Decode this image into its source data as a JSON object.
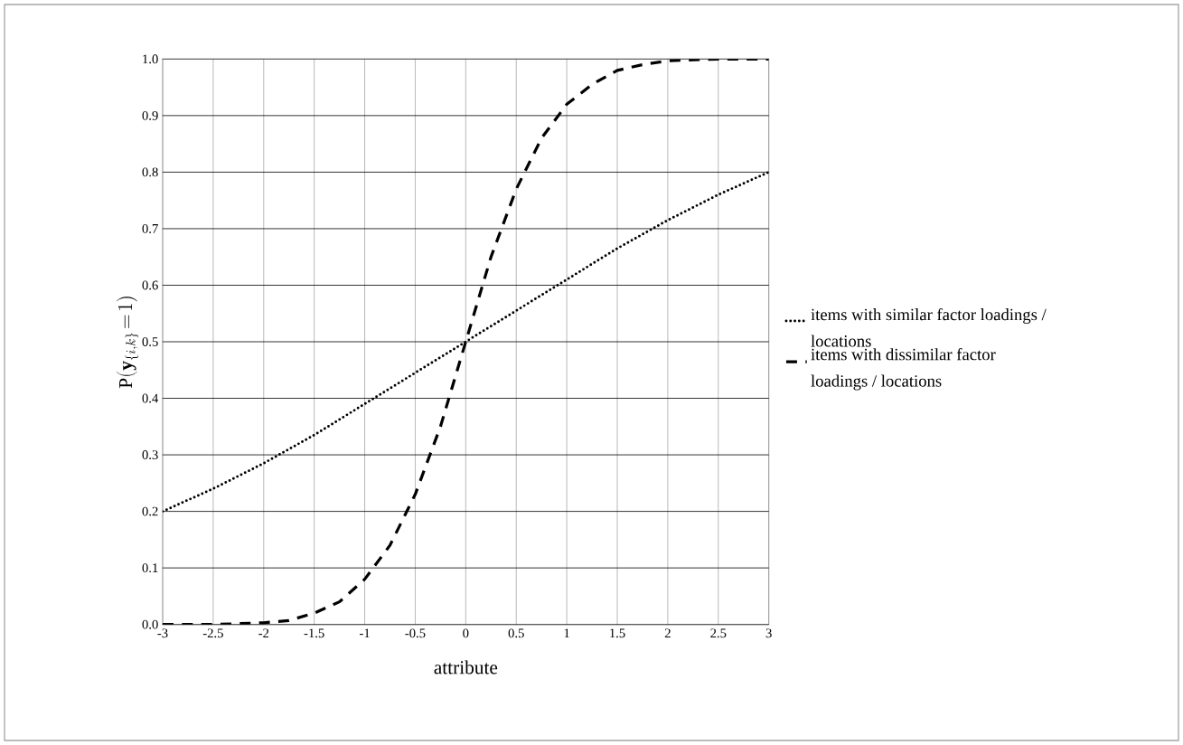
{
  "chart_data": {
    "type": "line",
    "xlabel": "attribute",
    "ylabel": "\\mathrm{P}(\\mathbf{y}_{\\{i,k\\}}\\!=\\!1)",
    "xlim": [
      -3,
      3
    ],
    "ylim": [
      0,
      1
    ],
    "xticks": [
      -3,
      -2.5,
      -2,
      -1.5,
      -1,
      -0.5,
      0,
      0.5,
      1,
      1.5,
      2,
      2.5,
      3
    ],
    "yticks": [
      {
        "value": 0,
        "label": "0.0"
      },
      {
        "value": 0.1,
        "label": "0.1"
      },
      {
        "value": 0.2,
        "label": "0.2"
      },
      {
        "value": 0.3,
        "label": "0.3"
      },
      {
        "value": 0.4,
        "label": "0.4"
      },
      {
        "value": 0.5,
        "label": "0.5"
      },
      {
        "value": 0.6,
        "label": "0.6"
      },
      {
        "value": 0.7,
        "label": "0.7"
      },
      {
        "value": 0.8,
        "label": "0.8"
      },
      {
        "value": 0.9,
        "label": "0.9"
      },
      {
        "value": 1,
        "label": "1.0"
      }
    ],
    "grid": true,
    "legend": "right",
    "marker": "none",
    "series": [
      {
        "name": "items with similar factor loadings / locations",
        "color": "#000000",
        "line_style": "dotted",
        "x": [
          -3,
          -2.5,
          -2,
          -1.5,
          -1,
          -0.5,
          0,
          0.5,
          1,
          1.5,
          2,
          2.5,
          3
        ],
        "values": [
          0.2,
          0.24,
          0.285,
          0.335,
          0.39,
          0.445,
          0.5,
          0.555,
          0.61,
          0.665,
          0.715,
          0.76,
          0.8
        ]
      },
      {
        "name": "items with dissimilar factor loadings / locations",
        "color": "#000000",
        "line_style": "dashed",
        "x": [
          -3,
          -2.5,
          -2,
          -1.75,
          -1.5,
          -1.25,
          -1,
          -0.75,
          -0.5,
          -0.25,
          0,
          0.25,
          0.5,
          0.75,
          1,
          1.25,
          1.5,
          1.75,
          2,
          2.5,
          3
        ],
        "values": [
          0,
          0,
          0.003,
          0.007,
          0.02,
          0.04,
          0.08,
          0.14,
          0.23,
          0.35,
          0.5,
          0.65,
          0.77,
          0.86,
          0.92,
          0.955,
          0.98,
          0.99,
          0.997,
          1,
          1
        ]
      }
    ]
  }
}
